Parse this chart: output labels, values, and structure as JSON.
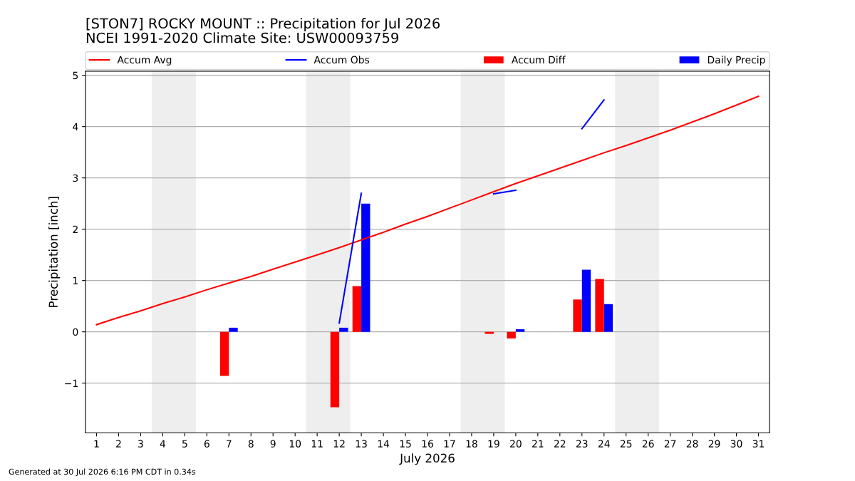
{
  "chart_data": {
    "type": "line",
    "title": "[STON7] ROCKY MOUNT :: Precipitation for Jul 2026",
    "subtitle": "NCEI 1991-2020 Climate Site: USW00093759",
    "xlabel": "July 2026",
    "ylabel": "Precipitation [inch]",
    "x": [
      1,
      2,
      3,
      4,
      5,
      6,
      7,
      8,
      9,
      10,
      11,
      12,
      13,
      14,
      15,
      16,
      17,
      18,
      19,
      20,
      21,
      22,
      23,
      24,
      25,
      26,
      27,
      28,
      29,
      30,
      31
    ],
    "series": [
      {
        "name": "Accum Avg",
        "color": "#ff0000",
        "values": [
          0.14,
          0.28,
          0.41,
          0.55,
          0.68,
          0.82,
          0.95,
          1.08,
          1.22,
          1.36,
          1.5,
          1.64,
          1.79,
          1.94,
          2.1,
          2.25,
          2.41,
          2.57,
          2.73,
          2.89,
          3.04,
          3.19,
          3.34,
          3.49,
          3.63,
          3.78,
          3.93,
          4.09,
          4.25,
          4.42,
          4.59
        ]
      },
      {
        "name": "Accum Obs",
        "color": "#0000ff",
        "values": [
          null,
          null,
          null,
          null,
          null,
          null,
          null,
          null,
          null,
          null,
          null,
          0.17,
          2.7,
          null,
          null,
          null,
          null,
          null,
          2.69,
          2.76,
          null,
          null,
          3.96,
          4.52,
          null,
          null,
          null,
          null,
          null,
          null,
          null
        ]
      },
      {
        "name": "Accum Diff",
        "type": "bar",
        "color": "#ff0000",
        "values": [
          null,
          null,
          null,
          null,
          null,
          null,
          -0.86,
          null,
          null,
          null,
          null,
          -1.47,
          0.89,
          null,
          null,
          null,
          null,
          null,
          -0.04,
          -0.13,
          null,
          null,
          0.63,
          1.03,
          null,
          null,
          null,
          null,
          null,
          null,
          null
        ]
      },
      {
        "name": "Daily Precip",
        "type": "bar",
        "color": "#0000ff",
        "values": [
          null,
          null,
          null,
          null,
          null,
          null,
          0.08,
          null,
          null,
          null,
          null,
          0.08,
          2.5,
          null,
          null,
          null,
          null,
          null,
          null,
          0.05,
          null,
          null,
          1.21,
          0.54,
          null,
          null,
          null,
          null,
          null,
          null,
          null
        ]
      }
    ],
    "xlim": [
      0.5,
      31.5
    ],
    "xticks": [
      1,
      2,
      3,
      4,
      5,
      6,
      7,
      8,
      9,
      10,
      11,
      12,
      13,
      14,
      15,
      16,
      17,
      18,
      19,
      20,
      21,
      22,
      23,
      24,
      25,
      26,
      27,
      28,
      29,
      30,
      31
    ],
    "ylim": [
      -1.97,
      5.08
    ],
    "yticks": [
      {
        "value": -1,
        "label": "−1"
      },
      0,
      1,
      2,
      3,
      4,
      5
    ],
    "bands": [
      {
        "axis": "x",
        "from": 3.5,
        "to": 5.5,
        "color": "#eeeeee"
      },
      {
        "axis": "x",
        "from": 10.5,
        "to": 12.5,
        "color": "#eeeeee"
      },
      {
        "axis": "x",
        "from": 17.5,
        "to": 19.5,
        "color": "#eeeeee"
      },
      {
        "axis": "x",
        "from": 24.5,
        "to": 26.5,
        "color": "#eeeeee"
      }
    ],
    "grid": "y",
    "legend": "top",
    "annotations": [
      "Generated at 30 Jul 2026 6:16 PM CDT in 0.34s"
    ]
  }
}
